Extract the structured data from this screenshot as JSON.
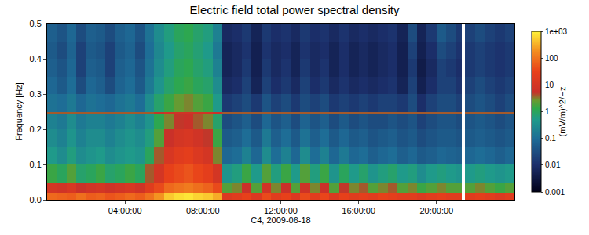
{
  "chart_data": {
    "type": "heatmap",
    "title": "Electric field total power spectral density",
    "x_label": "C4, 2009-06-18",
    "y_label": "Frequency [Hz]",
    "grid": false,
    "x": [
      0,
      0.5,
      1,
      1.5,
      2,
      2.5,
      3,
      3.5,
      4,
      4.5,
      5,
      5.5,
      6,
      6.5,
      7,
      7.5,
      8,
      8.5,
      9,
      9.5,
      10,
      10.5,
      11,
      11.5,
      12,
      12.5,
      13,
      13.5,
      14,
      14.5,
      15,
      15.5,
      16,
      16.5,
      17,
      17.5,
      18,
      18.5,
      19,
      19.5,
      20,
      20.5,
      21,
      21.3,
      21.45,
      22,
      22.5,
      23,
      23.5,
      24
    ],
    "y": [
      0,
      0.02,
      0.05,
      0.1,
      0.15,
      0.2,
      0.243,
      0.248,
      0.3,
      0.35,
      0.4,
      0.45,
      0.5
    ],
    "xlim": [
      0,
      24
    ],
    "xticks": [
      {
        "value": 4,
        "label": "04:00:00"
      },
      {
        "value": 8,
        "label": "08:00:00"
      },
      {
        "value": 12,
        "label": "12:00:00"
      },
      {
        "value": 16,
        "label": "16:00:00"
      },
      {
        "value": 20,
        "label": "20:00:00"
      }
    ],
    "ylim": [
      0,
      0.5
    ],
    "yticks": [
      {
        "value": 0,
        "label": "0.0"
      },
      0.1,
      0.2,
      0.3,
      0.4,
      0.5
    ],
    "cells": [
      [
        80,
        70,
        60,
        90,
        60,
        70,
        50,
        60,
        80,
        60,
        100,
        200,
        500,
        700,
        800,
        600,
        500,
        300,
        15,
        20,
        30,
        15,
        40,
        20,
        30,
        15,
        40,
        20,
        35,
        15,
        30,
        20,
        25,
        20,
        30,
        25,
        20,
        20,
        15,
        20,
        25,
        20,
        20,
        null,
        20,
        25,
        20,
        15,
        20
      ],
      [
        10,
        8,
        12,
        6,
        8,
        10,
        7,
        9,
        12,
        8,
        20,
        40,
        80,
        100,
        120,
        90,
        70,
        40,
        2,
        3,
        6,
        2,
        8,
        3,
        6,
        2,
        7,
        3,
        6,
        2,
        5,
        3,
        4,
        2,
        3,
        4,
        2,
        3,
        1.5,
        2,
        3,
        2,
        2,
        null,
        2,
        3,
        2,
        1.5,
        2
      ],
      [
        1.5,
        1,
        2,
        0.8,
        1,
        1.5,
        0.8,
        1,
        1.5,
        1,
        4,
        10,
        30,
        40,
        50,
        35,
        25,
        10,
        0.4,
        0.6,
        1.5,
        0.5,
        2,
        0.6,
        1.5,
        0.5,
        2,
        0.6,
        1.5,
        0.4,
        1,
        0.5,
        0.8,
        0.4,
        0.6,
        0.8,
        0.5,
        0.6,
        0.3,
        0.5,
        0.6,
        0.5,
        0.4,
        null,
        0.5,
        0.6,
        0.5,
        0.4,
        0.5
      ],
      [
        0.5,
        0.3,
        0.6,
        0.3,
        0.4,
        0.5,
        0.3,
        0.4,
        0.5,
        0.4,
        1,
        4,
        12,
        20,
        25,
        15,
        10,
        3,
        0.08,
        0.1,
        0.2,
        0.08,
        0.3,
        0.1,
        0.2,
        0.08,
        0.3,
        0.1,
        0.2,
        0.08,
        0.15,
        0.08,
        0.1,
        0.06,
        0.08,
        0.1,
        0.06,
        0.08,
        0.05,
        0.06,
        0.08,
        0.07,
        0.06,
        null,
        0.08,
        0.1,
        0.08,
        0.06,
        0.08
      ],
      [
        0.3,
        0.2,
        0.4,
        0.2,
        0.3,
        0.3,
        0.2,
        0.3,
        0.4,
        0.3,
        0.6,
        2,
        6,
        10,
        12,
        8,
        5,
        1.5,
        0.05,
        0.06,
        0.1,
        0.05,
        0.15,
        0.06,
        0.1,
        0.05,
        0.12,
        0.06,
        0.1,
        0.05,
        0.08,
        0.05,
        0.06,
        0.04,
        0.05,
        0.06,
        0.04,
        0.05,
        0.03,
        0.04,
        0.05,
        0.05,
        0.04,
        null,
        0.05,
        0.06,
        0.05,
        0.04,
        0.05
      ],
      [
        0.2,
        0.15,
        0.3,
        0.15,
        0.2,
        0.2,
        0.15,
        0.2,
        0.3,
        0.2,
        0.4,
        1.2,
        3,
        5,
        6,
        4,
        3,
        0.8,
        0.03,
        0.04,
        0.06,
        0.03,
        0.08,
        0.04,
        0.06,
        0.03,
        0.07,
        0.04,
        0.06,
        0.03,
        0.05,
        0.03,
        0.04,
        0.03,
        0.03,
        0.04,
        0.03,
        0.04,
        0.02,
        0.03,
        0.04,
        0.04,
        0.03,
        null,
        0.04,
        0.05,
        0.04,
        0.03,
        0.04
      ],
      [
        4,
        4,
        4,
        4,
        4,
        4,
        4,
        4,
        4,
        4,
        4,
        5,
        8,
        8,
        8,
        8,
        8,
        6,
        4,
        4,
        4,
        4,
        4,
        4,
        4,
        4,
        4,
        4,
        4,
        4,
        4,
        4,
        4,
        4,
        4,
        4,
        4,
        4,
        4,
        4,
        4,
        4,
        4,
        null,
        4,
        4,
        4,
        4,
        4
      ],
      [
        0.12,
        0.1,
        0.15,
        0.08,
        0.12,
        0.1,
        0.08,
        0.12,
        0.15,
        0.1,
        0.3,
        0.8,
        1.5,
        2.5,
        3,
        2,
        1.5,
        0.5,
        0.015,
        0.02,
        0.03,
        0.015,
        0.04,
        0.02,
        0.03,
        0.015,
        0.03,
        0.02,
        0.03,
        0.015,
        0.02,
        0.015,
        0.02,
        0.015,
        0.02,
        0.02,
        0.015,
        0.03,
        0.01,
        0.02,
        0.03,
        0.03,
        0.02,
        null,
        0.03,
        0.04,
        0.03,
        0.02,
        0.03
      ],
      [
        0.08,
        0.05,
        0.1,
        0.03,
        0.08,
        0.06,
        0.03,
        0.07,
        0.1,
        0.05,
        0.15,
        0.4,
        0.8,
        1.2,
        1.5,
        1,
        0.8,
        0.3,
        0.008,
        0.01,
        0.02,
        0.006,
        0.02,
        0.01,
        0.015,
        0.008,
        0.02,
        0.01,
        0.015,
        0.008,
        0.012,
        0.008,
        0.01,
        0.008,
        0.01,
        0.012,
        0.006,
        0.02,
        0.005,
        0.01,
        0.02,
        0.02,
        0.012,
        null,
        0.02,
        0.03,
        0.02,
        0.015,
        0.02
      ],
      [
        0.06,
        0.04,
        0.08,
        0.02,
        0.06,
        0.05,
        0.02,
        0.06,
        0.08,
        0.04,
        0.12,
        0.3,
        0.6,
        1,
        1.2,
        0.8,
        0.6,
        0.2,
        0.006,
        0.008,
        0.015,
        0.005,
        0.015,
        0.008,
        0.012,
        0.006,
        0.015,
        0.008,
        0.012,
        0.006,
        0.01,
        0.006,
        0.008,
        0.006,
        0.008,
        0.01,
        0.005,
        0.015,
        0.004,
        0.008,
        0.02,
        0.015,
        0.01,
        null,
        0.015,
        0.02,
        0.015,
        0.012,
        0.015
      ],
      [
        0.05,
        0.03,
        0.07,
        0.02,
        0.05,
        0.04,
        0.02,
        0.05,
        0.07,
        0.03,
        0.1,
        0.25,
        0.5,
        0.8,
        1,
        0.7,
        0.5,
        0.15,
        0.006,
        0.008,
        0.012,
        0.005,
        0.012,
        0.008,
        0.01,
        0.006,
        0.012,
        0.008,
        0.01,
        0.006,
        0.01,
        0.006,
        0.008,
        0.006,
        0.008,
        0.01,
        0.005,
        0.02,
        0.005,
        0.01,
        0.03,
        0.02,
        0.012,
        null,
        0.015,
        0.02,
        0.015,
        0.012,
        0.015
      ],
      [
        0.06,
        0.04,
        0.08,
        0.03,
        0.06,
        0.05,
        0.03,
        0.06,
        0.08,
        0.04,
        0.12,
        0.3,
        0.6,
        1,
        1.2,
        0.8,
        0.6,
        0.2,
        0.008,
        0.01,
        0.015,
        0.006,
        0.015,
        0.01,
        0.012,
        0.008,
        0.015,
        0.01,
        0.012,
        0.008,
        0.012,
        0.008,
        0.01,
        0.008,
        0.01,
        0.012,
        0.006,
        0.03,
        0.006,
        0.015,
        0.05,
        0.03,
        0.015,
        null,
        0.02,
        0.03,
        0.02,
        0.015,
        0.02
      ]
    ],
    "colorbar": {
      "label": "(mV/m)^2/Hz",
      "log": true,
      "range": [
        0.001,
        1000
      ],
      "ticks": [
        {
          "value": 1000,
          "label": "1e+03"
        },
        100,
        10,
        1,
        0.1,
        0.01,
        0.001
      ]
    }
  }
}
